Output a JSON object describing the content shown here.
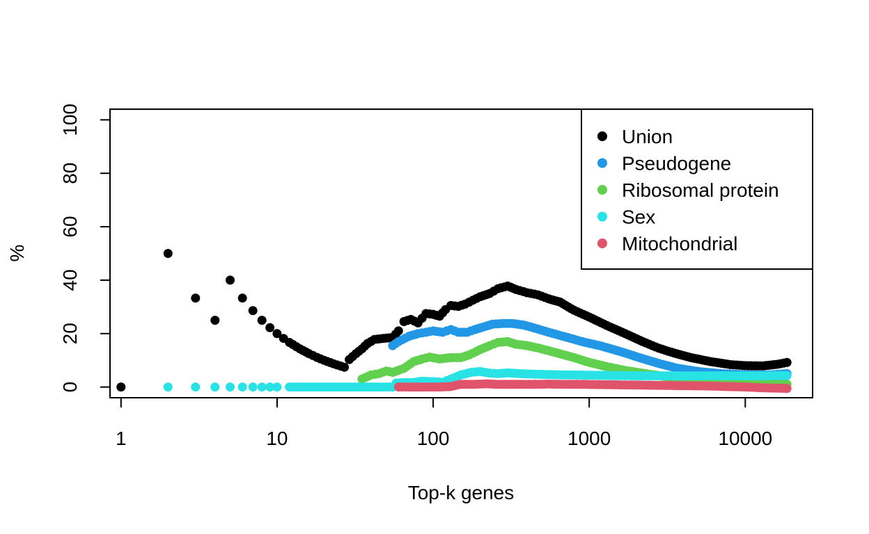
{
  "chart_data": {
    "type": "scatter",
    "title": "",
    "xlabel": "Top-k genes",
    "ylabel": "%",
    "x_scale": "log",
    "xlim": [
      0.85,
      27000
    ],
    "ylim": [
      -4,
      104
    ],
    "x_ticks": [
      1,
      10,
      100,
      1000,
      10000
    ],
    "x_tick_labels": [
      "1",
      "10",
      "100",
      "1000",
      "10000"
    ],
    "y_ticks": [
      0,
      20,
      40,
      60,
      80,
      100
    ],
    "y_tick_labels": [
      "0",
      "20",
      "40",
      "60",
      "80",
      "100"
    ],
    "grid": false,
    "legend_position": "top-right",
    "series": [
      {
        "name": "Union",
        "color": "#000000",
        "points": [
          [
            1,
            0
          ],
          [
            2,
            50
          ],
          [
            3,
            33.3
          ],
          [
            4,
            25
          ],
          [
            5,
            40
          ],
          [
            6,
            33.3
          ],
          [
            7,
            28.6
          ],
          [
            8,
            25
          ],
          [
            9,
            22.2
          ],
          [
            10,
            20
          ],
          [
            11,
            18.2
          ],
          [
            12,
            16.7
          ],
          [
            14,
            14.3
          ],
          [
            16,
            12.5
          ],
          [
            18,
            11.1
          ],
          [
            20,
            10
          ],
          [
            23,
            8.7
          ],
          [
            27,
            7.4
          ],
          [
            29,
            10.3
          ],
          [
            32,
            12.5
          ],
          [
            35,
            14.3
          ],
          [
            38,
            16.3
          ],
          [
            42,
            17.8
          ],
          [
            48,
            18.2
          ],
          [
            55,
            18.5
          ],
          [
            60,
            21
          ],
          [
            65,
            24.5
          ],
          [
            72,
            25.3
          ],
          [
            80,
            24
          ],
          [
            90,
            27.5
          ],
          [
            100,
            27.2
          ],
          [
            110,
            26.5
          ],
          [
            120,
            29
          ],
          [
            130,
            30.5
          ],
          [
            145,
            30.2
          ],
          [
            160,
            31
          ],
          [
            180,
            32.5
          ],
          [
            200,
            33.8
          ],
          [
            230,
            35
          ],
          [
            260,
            36.8
          ],
          [
            300,
            37.8
          ],
          [
            340,
            36.5
          ],
          [
            400,
            35.3
          ],
          [
            470,
            34.5
          ],
          [
            550,
            33
          ],
          [
            650,
            31.8
          ],
          [
            800,
            28.7
          ],
          [
            1000,
            26.2
          ],
          [
            1300,
            23
          ],
          [
            1700,
            20
          ],
          [
            2200,
            17
          ],
          [
            2800,
            14.5
          ],
          [
            3500,
            12.7
          ],
          [
            4500,
            11
          ],
          [
            6000,
            9.5
          ],
          [
            8000,
            8.4
          ],
          [
            10000,
            8
          ],
          [
            13000,
            7.9
          ],
          [
            16000,
            8.5
          ],
          [
            18500,
            9.2
          ]
        ]
      },
      {
        "name": "Pseudogene",
        "color": "#2297E6",
        "points": [
          [
            55,
            15.5
          ],
          [
            60,
            17
          ],
          [
            70,
            19
          ],
          [
            80,
            20
          ],
          [
            90,
            20.5
          ],
          [
            100,
            21
          ],
          [
            115,
            20.5
          ],
          [
            130,
            21.5
          ],
          [
            145,
            20.5
          ],
          [
            165,
            20.5
          ],
          [
            185,
            21.5
          ],
          [
            210,
            22.5
          ],
          [
            240,
            23.5
          ],
          [
            280,
            23.8
          ],
          [
            320,
            23.8
          ],
          [
            380,
            23.2
          ],
          [
            450,
            22
          ],
          [
            550,
            20.5
          ],
          [
            700,
            18.8
          ],
          [
            900,
            17
          ],
          [
            1200,
            15.3
          ],
          [
            1600,
            13.2
          ],
          [
            2100,
            11
          ],
          [
            2800,
            8.8
          ],
          [
            3700,
            7
          ],
          [
            5000,
            5.8
          ],
          [
            7000,
            5
          ],
          [
            10000,
            4.6
          ],
          [
            14000,
            4.5
          ],
          [
            18500,
            5
          ]
        ]
      },
      {
        "name": "Ribosomal protein",
        "color": "#61D04F",
        "points": [
          [
            35,
            3
          ],
          [
            40,
            4.5
          ],
          [
            45,
            5
          ],
          [
            50,
            6
          ],
          [
            55,
            5.5
          ],
          [
            65,
            7
          ],
          [
            75,
            9.5
          ],
          [
            85,
            10.5
          ],
          [
            95,
            11.2
          ],
          [
            110,
            10.5
          ],
          [
            130,
            11
          ],
          [
            150,
            11
          ],
          [
            170,
            12
          ],
          [
            200,
            14
          ],
          [
            230,
            15.5
          ],
          [
            260,
            16.7
          ],
          [
            300,
            17
          ],
          [
            340,
            16
          ],
          [
            400,
            15.5
          ],
          [
            480,
            14.5
          ],
          [
            600,
            13
          ],
          [
            800,
            11
          ],
          [
            1000,
            9.2
          ],
          [
            1300,
            7.6
          ],
          [
            1700,
            6.2
          ],
          [
            2300,
            5
          ],
          [
            3000,
            4
          ],
          [
            4000,
            3.2
          ],
          [
            5500,
            2.5
          ],
          [
            7500,
            1.9
          ],
          [
            10000,
            1.5
          ],
          [
            14000,
            1.2
          ],
          [
            18500,
            1.1
          ]
        ]
      },
      {
        "name": "Sex",
        "color": "#28E2E5",
        "points": [
          [
            2,
            0
          ],
          [
            3,
            0
          ],
          [
            4,
            0
          ],
          [
            5,
            0
          ],
          [
            6,
            0
          ],
          [
            7,
            0
          ],
          [
            8,
            0
          ],
          [
            9,
            0
          ],
          [
            10,
            0
          ],
          [
            12,
            0
          ],
          [
            14,
            0
          ],
          [
            17,
            0
          ],
          [
            20,
            0
          ],
          [
            25,
            0
          ],
          [
            30,
            0
          ],
          [
            38,
            0
          ],
          [
            45,
            0
          ],
          [
            55,
            0
          ],
          [
            58,
            1.5
          ],
          [
            65,
            1.7
          ],
          [
            75,
            1.7
          ],
          [
            85,
            2.2
          ],
          [
            100,
            2
          ],
          [
            115,
            1.8
          ],
          [
            130,
            3
          ],
          [
            150,
            4.5
          ],
          [
            175,
            5.5
          ],
          [
            200,
            5.8
          ],
          [
            230,
            5.2
          ],
          [
            260,
            5
          ],
          [
            300,
            5.3
          ],
          [
            360,
            5
          ],
          [
            450,
            4.8
          ],
          [
            600,
            4.6
          ],
          [
            800,
            4.5
          ],
          [
            1100,
            4.4
          ],
          [
            1500,
            4.3
          ],
          [
            2000,
            4.2
          ],
          [
            3000,
            4.2
          ],
          [
            4500,
            4.2
          ],
          [
            6500,
            4.2
          ],
          [
            9000,
            4.2
          ],
          [
            13000,
            4.2
          ],
          [
            18500,
            4.3
          ]
        ]
      },
      {
        "name": "Mitochondrial",
        "color": "#DF536B",
        "points": [
          [
            60,
            0
          ],
          [
            70,
            0
          ],
          [
            80,
            0
          ],
          [
            95,
            0
          ],
          [
            110,
            0
          ],
          [
            130,
            0.2
          ],
          [
            150,
            1
          ],
          [
            180,
            1
          ],
          [
            220,
            1.2
          ],
          [
            260,
            1
          ],
          [
            300,
            1
          ],
          [
            360,
            1
          ],
          [
            450,
            1
          ],
          [
            550,
            1.1
          ],
          [
            700,
            1
          ],
          [
            900,
            1
          ],
          [
            1200,
            0.9
          ],
          [
            1600,
            0.8
          ],
          [
            2200,
            0.7
          ],
          [
            3000,
            0.6
          ],
          [
            4000,
            0.5
          ],
          [
            5500,
            0.4
          ],
          [
            7500,
            0.2
          ],
          [
            10000,
            0
          ],
          [
            13000,
            -0.3
          ],
          [
            18500,
            -0.5
          ]
        ]
      }
    ]
  }
}
